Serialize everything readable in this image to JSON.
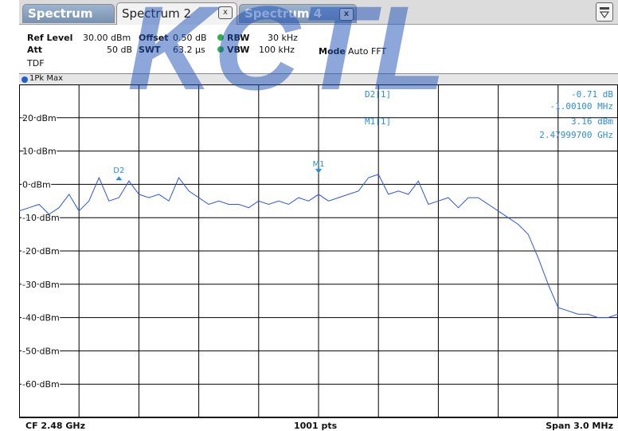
{
  "tabs": [
    {
      "label": "Spectrum",
      "active": false,
      "closable": false
    },
    {
      "label": "Spectrum 2",
      "active": true,
      "closable": true
    },
    {
      "label": "Spectrum 4",
      "active": false,
      "closable": true
    }
  ],
  "tab_close_glyph": "x",
  "menu_icon": "menu-icon",
  "watermark_text": "KCTL",
  "settings": {
    "ref_level_label": "Ref Level",
    "ref_level_value": "30.00 dBm",
    "offset_label": "Offset",
    "offset_value": "0.50 dB",
    "rbw_label": "RBW",
    "rbw_value": "30 kHz",
    "att_label": "Att",
    "att_value": "50 dB",
    "swt_label": "SWT",
    "swt_value": "63.2 µs",
    "vbw_label": "VBW",
    "vbw_value": "100 kHz",
    "mode_label": "Mode",
    "mode_value": "Auto FFT",
    "tdf_label": "TDF"
  },
  "trace_label": "1Pk Max",
  "y_axis_labels": [
    "20 dBm",
    "10 dBm",
    "0 dBm",
    "-10 dBm",
    "-20 dBm",
    "-30 dBm",
    "-40 dBm",
    "-50 dBm",
    "-60 dBm"
  ],
  "markers": {
    "d2_name": "D2[1]",
    "d2_level": "-0.71 dB",
    "d2_freq": "-1.00100 MHz",
    "m1_name": "M1[1]",
    "m1_level": "3.16 dBm",
    "m1_freq": "2.47999700 GHz",
    "d2_tag": "D2",
    "m1_tag": "M1"
  },
  "footer": {
    "cf": "CF 2.48 GHz",
    "pts": "1001 pts",
    "span": "Span 3.0 MHz"
  },
  "colors": {
    "trace": "#2b55e6",
    "marker_text": "#2a8fd6",
    "grid": "#000000",
    "watermark": "#1e4fb8"
  },
  "chart_data": {
    "type": "line",
    "xlabel": "",
    "ylabel": "",
    "xlim": [
      2478.5,
      2481.5
    ],
    "ylim": [
      -70,
      30
    ],
    "series": [
      {
        "x": [
          2478.5,
          2478.55,
          2478.6,
          2478.65,
          2478.7,
          2478.75,
          2478.8,
          2478.85,
          2478.9,
          2478.95,
          2479.0,
          2479.05,
          2479.1,
          2479.15,
          2479.2,
          2479.25,
          2479.3,
          2479.35,
          2479.4,
          2479.45,
          2479.5,
          2479.55,
          2479.6,
          2479.65,
          2479.7,
          2479.75,
          2479.8,
          2479.85,
          2479.9,
          2479.95,
          2480.0,
          2480.05,
          2480.1,
          2480.15,
          2480.2,
          2480.25,
          2480.3,
          2480.35,
          2480.4,
          2480.45,
          2480.5,
          2480.55,
          2480.6,
          2480.65,
          2480.7,
          2480.75,
          2480.8,
          2480.85,
          2480.9,
          2480.95,
          2481.0,
          2481.05,
          2481.1,
          2481.15,
          2481.2,
          2481.25,
          2481.3,
          2481.35,
          2481.4,
          2481.45,
          2481.5
        ],
        "values": [
          -8,
          -7,
          -6,
          -9,
          -7,
          -3,
          -8,
          -5,
          2,
          -5,
          -4,
          1,
          -3,
          -4,
          -3,
          -5,
          2,
          -2,
          -4,
          -6,
          -5,
          -6,
          -6,
          -7,
          -5,
          -6,
          -5,
          -6,
          -4,
          -5,
          -3,
          -5,
          -4,
          -3,
          -2,
          2,
          3,
          -3,
          -2,
          -3,
          1,
          -6,
          -5,
          -4,
          -7,
          -4,
          -4,
          -6,
          -8,
          -10,
          -12,
          -15,
          -22,
          -30,
          -37,
          -38,
          -39,
          -39,
          -40,
          -40,
          -39
        ]
      }
    ]
  }
}
